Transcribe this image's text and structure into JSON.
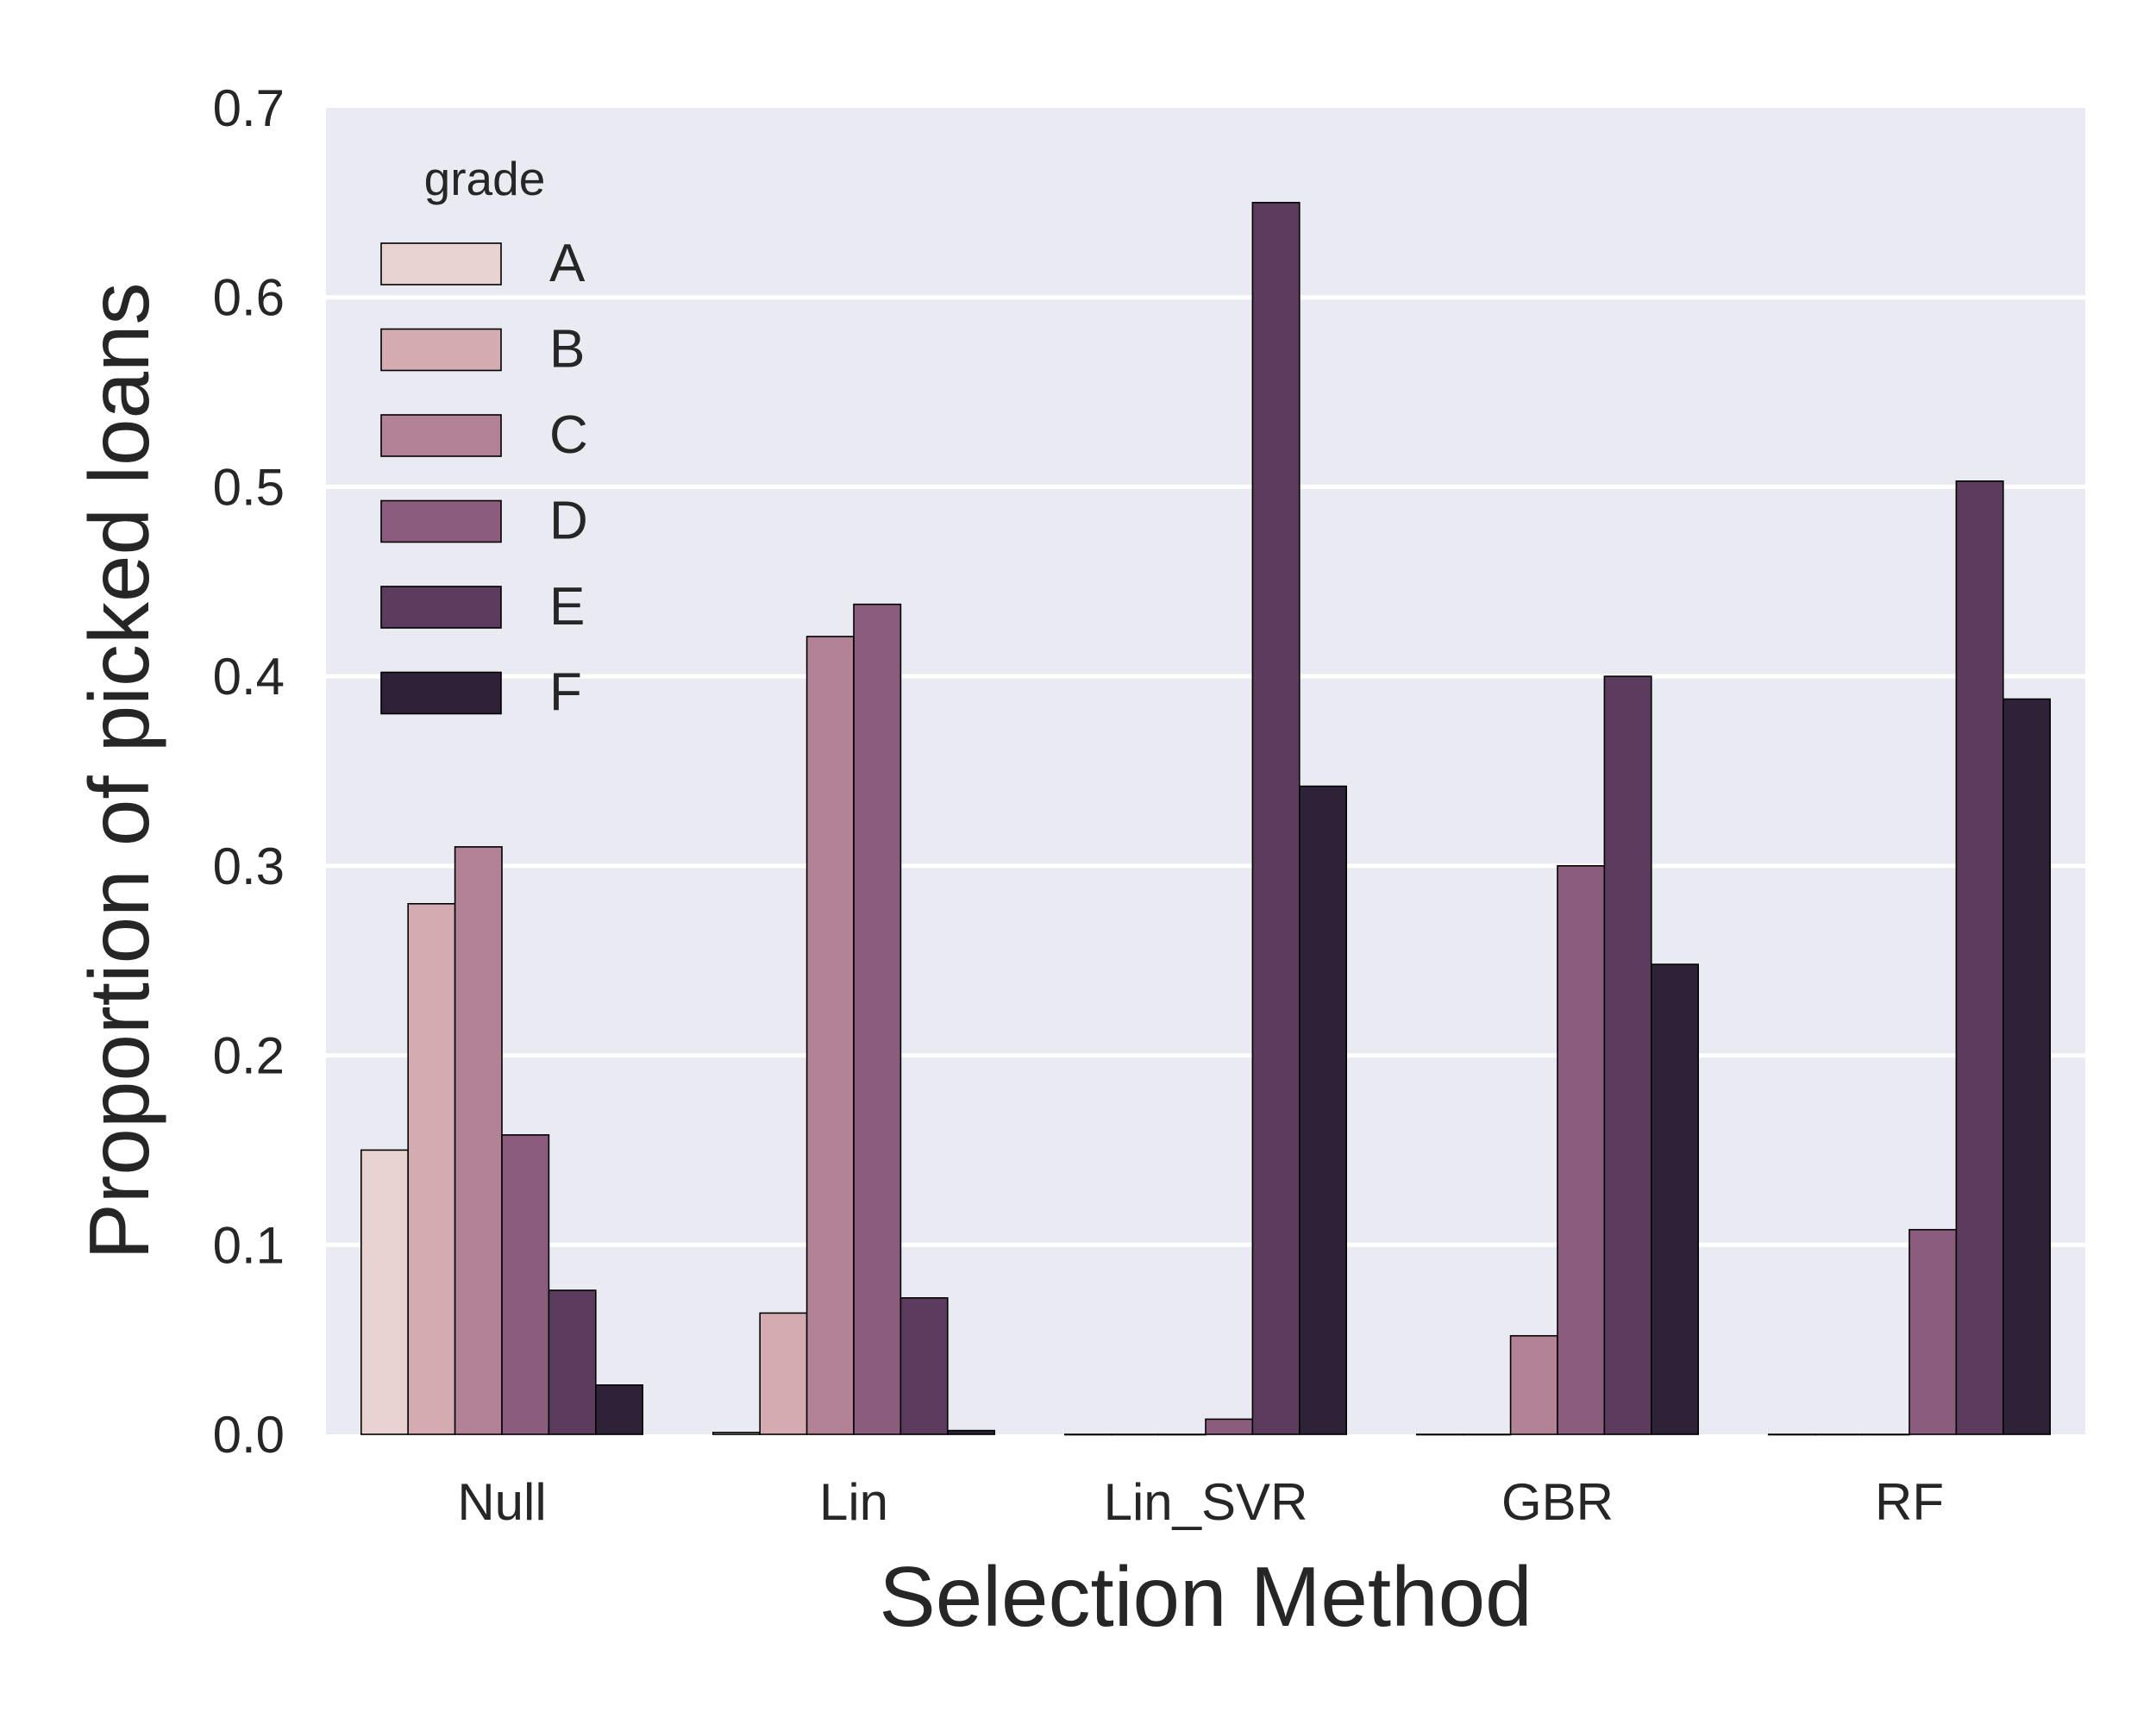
{
  "chart_data": {
    "type": "bar",
    "title": "",
    "xlabel": "Selection Method",
    "ylabel": "Proportion of picked loans",
    "categories": [
      "Null",
      "Lin",
      "Lin_SVR",
      "GBR",
      "RF"
    ],
    "ylim": [
      0,
      0.7
    ],
    "yticks": [
      "0.0",
      "0.1",
      "0.2",
      "0.3",
      "0.4",
      "0.5",
      "0.6",
      "0.7"
    ],
    "grid": true,
    "legend": {
      "title": "grade",
      "placement": "top-left"
    },
    "series": [
      {
        "name": "A",
        "color": "#e8d3d0",
        "values": [
          0.15,
          0.001,
          0.0,
          0.0,
          0.0
        ]
      },
      {
        "name": "B",
        "color": "#d4abb1",
        "values": [
          0.28,
          0.064,
          0.0,
          0.0,
          0.0
        ]
      },
      {
        "name": "C",
        "color": "#b48297",
        "values": [
          0.31,
          0.421,
          0.0,
          0.052,
          0.0
        ]
      },
      {
        "name": "D",
        "color": "#8c5c7e",
        "values": [
          0.158,
          0.438,
          0.008,
          0.3,
          0.108
        ]
      },
      {
        "name": "E",
        "color": "#5c3c5e",
        "values": [
          0.076,
          0.072,
          0.65,
          0.4,
          0.503
        ]
      },
      {
        "name": "F",
        "color": "#2e2239",
        "values": [
          0.026,
          0.002,
          0.342,
          0.248,
          0.388
        ]
      }
    ]
  }
}
